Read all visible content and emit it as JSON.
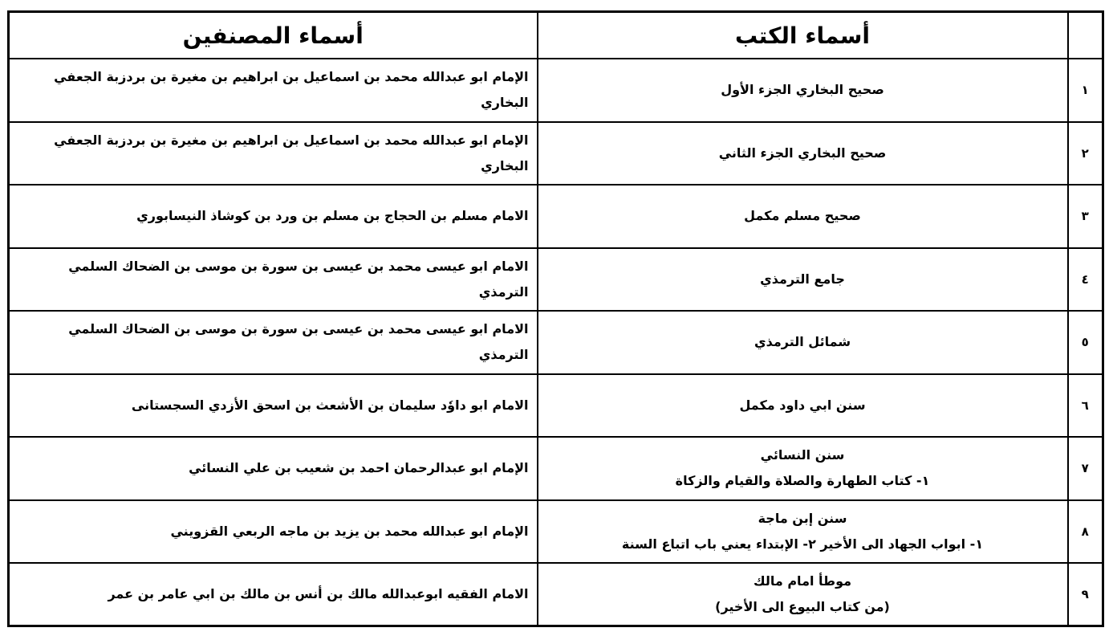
{
  "table": {
    "header": {
      "books": "أسماء الكتب",
      "authors": "أسماء المصنفين"
    },
    "rows": [
      {
        "number": "١",
        "book": [
          "صحيح البخاري الجزء الأول"
        ],
        "author": "الإمام ابو عبدالله محمد بن اسماعيل بن ابراهيم بن مغيرة بن بردزبة الجعفي البخاري"
      },
      {
        "number": "٢",
        "book": [
          "صحيح البخاري الجزء الثاني"
        ],
        "author": "الإمام ابو عبدالله محمد بن اسماعيل بن ابراهيم بن مغيرة بن بردزبة الجعفي البخاري"
      },
      {
        "number": "٣",
        "book": [
          "صحيح مسلم مكمل"
        ],
        "author": "الامام مسلم بن الحجاج بن مسلم بن ورد بن كوشاذ النيسابوري"
      },
      {
        "number": "٤",
        "book": [
          "جامع الترمذي"
        ],
        "author": "الامام ابو عيسى محمد بن عيسى بن سورة بن موسى بن الضحاك السلمي الترمذي"
      },
      {
        "number": "٥",
        "book": [
          "شمائل الترمذي"
        ],
        "author": "الامام ابو عيسى محمد بن عيسى بن سورة بن موسى بن الضحاك السلمي الترمذي"
      },
      {
        "number": "٦",
        "book": [
          "سنن ابي داود مكمل"
        ],
        "author": "الامام ابو داوٗد سليمان بن الأشعث بن اسحق الأزدي السجستانى"
      },
      {
        "number": "٧",
        "book": [
          "سنن النسائي",
          "١- كتاب الطهارة والصلاة والقيام والزكاة"
        ],
        "author": "الإمام ابو عبدالرحمان احمد بن شعيب بن علي النسائي"
      },
      {
        "number": "٨",
        "book": [
          "سنن إبن ماجة",
          "١- ابواب الجهاد الى الأخير   ٢- الإبتداء يعني باب اتباع السنة"
        ],
        "author": "الإمام ابو عبدالله محمد بن يزيد بن ماجه الربعي القزويني"
      },
      {
        "number": "٩",
        "book": [
          "موطأ امام مالك",
          "(من كتاب البيوع الى الأخير)"
        ],
        "author": "الامام الفقيه ابوعبدالله مالك بن أنس بن مالك بن ابي عامر بن عمر"
      }
    ]
  }
}
